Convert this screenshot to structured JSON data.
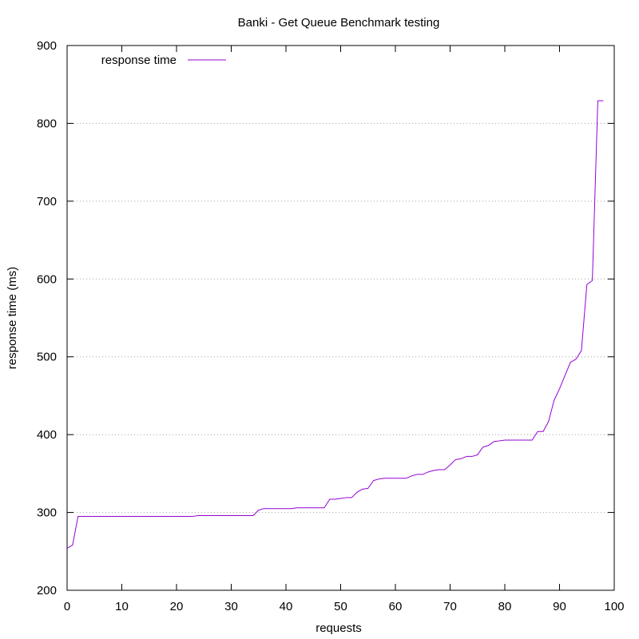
{
  "chart_data": {
    "type": "line",
    "title": "Banki - Get Queue Benchmark testing",
    "xlabel": "requests",
    "ylabel": "response time (ms)",
    "xlim": [
      0,
      100
    ],
    "ylim": [
      200,
      900
    ],
    "xticks": [
      0,
      10,
      20,
      30,
      40,
      50,
      60,
      70,
      80,
      90,
      100
    ],
    "yticks": [
      200,
      300,
      400,
      500,
      600,
      700,
      800,
      900
    ],
    "grid": "horizontal dotted",
    "legend_position": "top-left",
    "series": [
      {
        "name": "response time",
        "color": "#9400d3",
        "x": [
          0,
          1,
          2,
          3,
          4,
          5,
          6,
          7,
          8,
          9,
          10,
          11,
          12,
          13,
          14,
          15,
          16,
          17,
          18,
          19,
          20,
          21,
          22,
          23,
          24,
          25,
          26,
          27,
          28,
          29,
          30,
          31,
          32,
          33,
          34,
          35,
          36,
          37,
          38,
          39,
          40,
          41,
          42,
          43,
          44,
          45,
          46,
          47,
          48,
          49,
          50,
          51,
          52,
          53,
          54,
          55,
          56,
          57,
          58,
          59,
          60,
          61,
          62,
          63,
          64,
          65,
          66,
          67,
          68,
          69,
          70,
          71,
          72,
          73,
          74,
          75,
          76,
          77,
          78,
          79,
          80,
          81,
          82,
          83,
          84,
          85,
          86,
          87,
          88,
          89,
          90,
          91,
          92,
          93,
          94,
          95,
          96,
          97,
          98
        ],
        "y": [
          254,
          258,
          295,
          295,
          295,
          295,
          295,
          295,
          295,
          295,
          295,
          295,
          295,
          295,
          295,
          295,
          295,
          295,
          295,
          295,
          295,
          295,
          295,
          295,
          296,
          296,
          296,
          296,
          296,
          296,
          296,
          296,
          296,
          296,
          296,
          303,
          305,
          305,
          305,
          305,
          305,
          305,
          306,
          306,
          306,
          306,
          306,
          306,
          317,
          317,
          318,
          319,
          319,
          326,
          330,
          331,
          341,
          343,
          344,
          344,
          344,
          344,
          344,
          347,
          349,
          349,
          352,
          354,
          355,
          355,
          361,
          368,
          369,
          372,
          372,
          374,
          384,
          386,
          391,
          392,
          393,
          393,
          393,
          393,
          393,
          393,
          404,
          404,
          417,
          444,
          459,
          476,
          493,
          497,
          508,
          593,
          598,
          829,
          829
        ]
      }
    ]
  }
}
